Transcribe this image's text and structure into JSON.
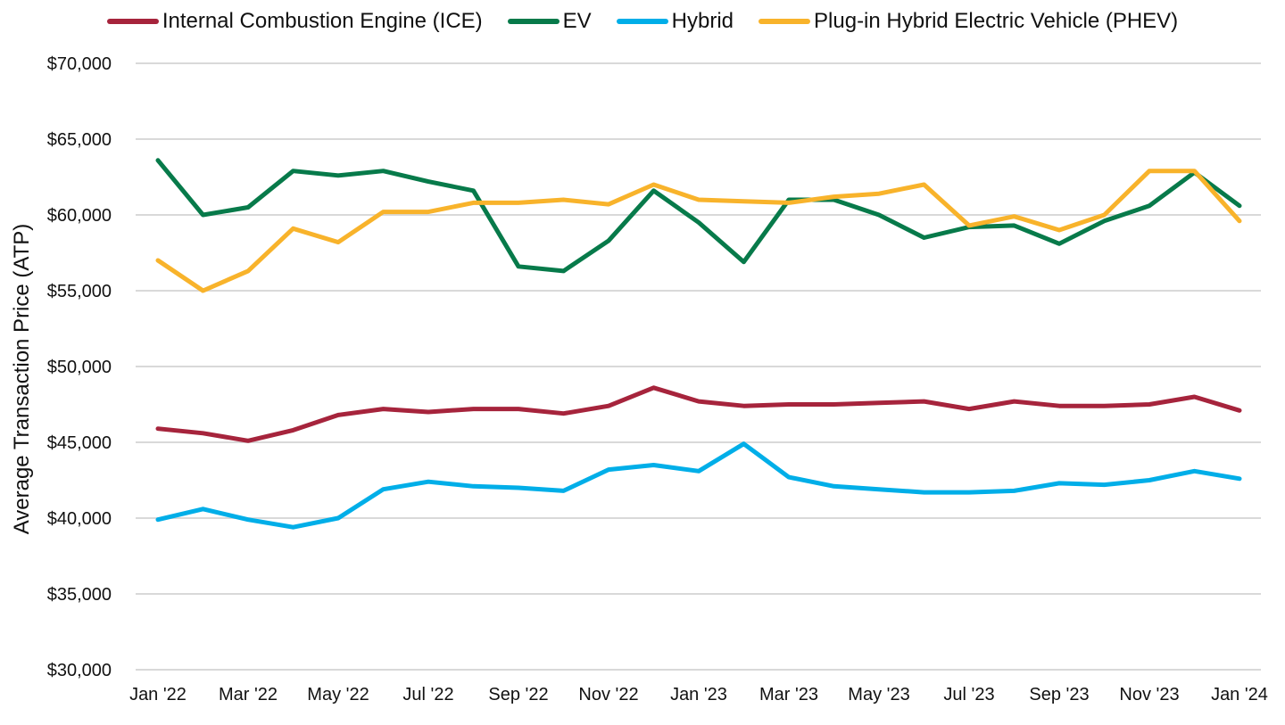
{
  "chart_data": {
    "type": "line",
    "title": "",
    "xlabel": "",
    "ylabel": "Average Transaction Price (ATP)",
    "ylim": [
      30000,
      70000
    ],
    "yticks": [
      30000,
      35000,
      40000,
      45000,
      50000,
      55000,
      60000,
      65000,
      70000
    ],
    "ytick_labels": [
      "$30,000",
      "$35,000",
      "$40,000",
      "$45,000",
      "$50,000",
      "$55,000",
      "$60,000",
      "$65,000",
      "$70,000"
    ],
    "grid": true,
    "legend_position": "top",
    "x": [
      "Jan '22",
      "Feb '22",
      "Mar '22",
      "Apr '22",
      "May '22",
      "Jun '22",
      "Jul '22",
      "Aug '22",
      "Sep '22",
      "Oct '22",
      "Nov '22",
      "Dec '22",
      "Jan '23",
      "Feb '23",
      "Mar '23",
      "Apr '23",
      "May '23",
      "Jun '23",
      "Jul '23",
      "Aug '23",
      "Sep '23",
      "Oct '23",
      "Nov '23",
      "Dec '23",
      "Jan '24"
    ],
    "xtick_labels": [
      "Jan '22",
      "Mar '22",
      "May '22",
      "Jul '22",
      "Sep '22",
      "Nov '22",
      "Jan '23",
      "Mar '23",
      "May '23",
      "Jul '23",
      "Sep '23",
      "Nov '23",
      "Jan '24"
    ],
    "series": [
      {
        "name": "Internal Combustion Engine (ICE)",
        "color": "#a6243c",
        "values": [
          45900,
          45600,
          45100,
          45800,
          46800,
          47200,
          47000,
          47200,
          47200,
          46900,
          47400,
          48600,
          47700,
          47400,
          47500,
          47500,
          47600,
          47700,
          47200,
          47700,
          47400,
          47400,
          47500,
          48000,
          47100
        ]
      },
      {
        "name": "EV",
        "color": "#077a4a",
        "values": [
          63600,
          60000,
          60500,
          62900,
          62600,
          62900,
          62200,
          61600,
          56600,
          56300,
          58300,
          61600,
          59500,
          56900,
          61000,
          61000,
          60000,
          58500,
          59200,
          59300,
          58100,
          59600,
          60600,
          62800,
          60600
        ]
      },
      {
        "name": "Hybrid",
        "color": "#00aee8",
        "values": [
          39900,
          40600,
          39900,
          39400,
          40000,
          41900,
          42400,
          42100,
          42000,
          41800,
          43200,
          43500,
          43100,
          44900,
          42700,
          42100,
          41900,
          41700,
          41700,
          41800,
          42300,
          42200,
          42500,
          43100,
          42600
        ]
      },
      {
        "name": "Plug-in Hybrid Electric Vehicle (PHEV)",
        "color": "#f8b32b",
        "values": [
          57000,
          55000,
          56300,
          59100,
          58200,
          60200,
          60200,
          60800,
          60800,
          61000,
          60700,
          62000,
          61000,
          60900,
          60800,
          61200,
          61400,
          62000,
          59300,
          59900,
          59000,
          60000,
          62900,
          62900,
          59600
        ]
      }
    ]
  }
}
